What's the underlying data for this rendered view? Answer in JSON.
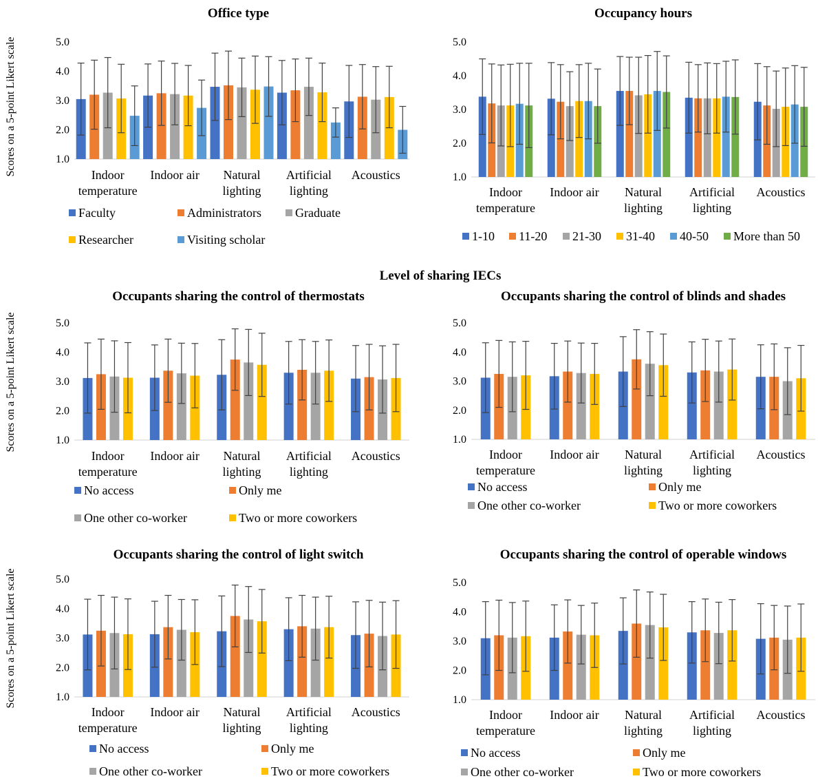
{
  "section_title": "Level of sharing IECs",
  "colors": {
    "blue": "#4472C4",
    "orange": "#ED7D31",
    "gray": "#A5A5A5",
    "yellow": "#FFC000",
    "lightblue": "#5B9BD5",
    "green": "#70AD47",
    "errorbar": "#404040"
  },
  "chart_data": [
    {
      "type": "bar",
      "title": "Office type",
      "ylabel": "Scores on a 5-point Likert scale",
      "ylim": [
        1.0,
        5.0
      ],
      "yticks": [
        "1.0",
        "2.0",
        "3.0",
        "4.0",
        "5.0"
      ],
      "categories": [
        "Indoor temperature",
        "Indoor air",
        "Natural lighting",
        "Artificial lighting",
        "Acoustics"
      ],
      "series": [
        {
          "name": "Faculty",
          "color": "#4472C4",
          "values": [
            3.05,
            3.17,
            3.47,
            3.27,
            2.97
          ],
          "errors": [
            1.23,
            1.08,
            1.15,
            1.1,
            1.23
          ]
        },
        {
          "name": "Administrators",
          "color": "#ED7D31",
          "values": [
            3.2,
            3.25,
            3.52,
            3.35,
            3.13
          ],
          "errors": [
            1.18,
            1.1,
            1.17,
            1.07,
            1.1
          ]
        },
        {
          "name": "Graduate",
          "color": "#A5A5A5",
          "values": [
            3.27,
            3.22,
            3.45,
            3.47,
            3.03
          ],
          "errors": [
            1.2,
            1.05,
            1.0,
            0.98,
            1.13
          ]
        },
        {
          "name": "Researcher",
          "color": "#FFC000",
          "values": [
            3.07,
            3.17,
            3.37,
            3.28,
            3.12
          ],
          "errors": [
            1.17,
            1.03,
            1.15,
            1.0,
            1.05
          ]
        },
        {
          "name": "Visiting scholar",
          "color": "#5B9BD5",
          "values": [
            2.48,
            2.75,
            3.48,
            2.25,
            2.0
          ],
          "errors": [
            1.02,
            0.95,
            1.02,
            0.5,
            0.8
          ]
        }
      ],
      "legend_rows": [
        [
          "Faculty",
          "Administrators",
          "Graduate"
        ],
        [
          "Researcher",
          "Visiting scholar"
        ]
      ]
    },
    {
      "type": "bar",
      "title": "Occupancy hours",
      "ylabel": "",
      "ylim": [
        1.0,
        5.0
      ],
      "yticks": [
        "1.0",
        "2.0",
        "3.0",
        "4.0",
        "5.0"
      ],
      "categories": [
        "Indoor temperature",
        "Indoor air",
        "Natural lighting",
        "Artificial lighting",
        "Acoustics"
      ],
      "series": [
        {
          "name": "1-10",
          "color": "#4472C4",
          "values": [
            3.38,
            3.32,
            3.55,
            3.35,
            3.23
          ],
          "errors": [
            1.12,
            1.07,
            1.02,
            1.05,
            1.13
          ]
        },
        {
          "name": "11-20",
          "color": "#ED7D31",
          "values": [
            3.18,
            3.23,
            3.55,
            3.33,
            3.12
          ],
          "errors": [
            1.17,
            1.1,
            1.0,
            1.0,
            1.15
          ]
        },
        {
          "name": "21-30",
          "color": "#A5A5A5",
          "values": [
            3.12,
            3.1,
            3.42,
            3.33,
            3.02
          ],
          "errors": [
            1.2,
            1.02,
            1.13,
            1.05,
            1.12
          ]
        },
        {
          "name": "31-40",
          "color": "#FFC000",
          "values": [
            3.12,
            3.25,
            3.45,
            3.33,
            3.08
          ],
          "errors": [
            1.22,
            1.08,
            1.15,
            1.03,
            1.15
          ]
        },
        {
          "name": "40-50",
          "color": "#5B9BD5",
          "values": [
            3.17,
            3.25,
            3.55,
            3.38,
            3.15
          ],
          "errors": [
            1.2,
            1.12,
            1.17,
            1.05,
            1.15
          ]
        },
        {
          "name": "More than 50",
          "color": "#70AD47",
          "values": [
            3.12,
            3.1,
            3.52,
            3.37,
            3.08
          ],
          "errors": [
            1.25,
            1.1,
            1.07,
            1.1,
            1.17
          ]
        }
      ],
      "legend_rows": [
        [
          "1-10",
          "11-20",
          "21-30",
          "31-40",
          "40-50",
          "More than 50"
        ]
      ]
    },
    {
      "type": "bar",
      "title": "Occupants sharing the control of thermostats",
      "ylabel": "Scores on a 5-point Likert scale",
      "ylim": [
        1.0,
        5.0
      ],
      "yticks": [
        "1.0",
        "2.0",
        "3.0",
        "4.0",
        "5.0"
      ],
      "categories": [
        "Indoor temperature",
        "Indoor air",
        "Natural lighting",
        "Artificial lighting",
        "Acoustics"
      ],
      "series": [
        {
          "name": "No access",
          "color": "#4472C4",
          "values": [
            3.12,
            3.13,
            3.23,
            3.3,
            3.1
          ],
          "errors": [
            1.2,
            1.12,
            1.2,
            1.07,
            1.13
          ]
        },
        {
          "name": "Only me",
          "color": "#ED7D31",
          "values": [
            3.25,
            3.37,
            3.75,
            3.4,
            3.15
          ],
          "errors": [
            1.2,
            1.08,
            1.05,
            1.03,
            1.12
          ]
        },
        {
          "name": "One other co-worker",
          "color": "#A5A5A5",
          "values": [
            3.17,
            3.28,
            3.65,
            3.3,
            3.07
          ],
          "errors": [
            1.22,
            1.03,
            1.13,
            1.07,
            1.15
          ]
        },
        {
          "name": "Two or more coworkers",
          "color": "#FFC000",
          "values": [
            3.13,
            3.2,
            3.57,
            3.37,
            3.12
          ],
          "errors": [
            1.2,
            1.1,
            1.08,
            1.05,
            1.15
          ]
        }
      ],
      "legend_rows": [
        [
          "No access",
          "Only me"
        ],
        [
          "One other co-worker",
          "Two or more coworkers"
        ]
      ]
    },
    {
      "type": "bar",
      "title": "Occupants sharing the control of blinds and shades",
      "ylabel": "",
      "ylim": [
        1.0,
        5.0
      ],
      "yticks": [
        "1.0",
        "2.0",
        "3.0",
        "4.0",
        "5.0"
      ],
      "categories": [
        "Indoor temperature",
        "Indoor air",
        "Natural lighting",
        "Artificial lighting",
        "Acoustics"
      ],
      "series": [
        {
          "name": "No access",
          "color": "#4472C4",
          "values": [
            3.12,
            3.17,
            3.33,
            3.3,
            3.15
          ],
          "errors": [
            1.2,
            1.13,
            1.2,
            1.05,
            1.1
          ]
        },
        {
          "name": "Only me",
          "color": "#ED7D31",
          "values": [
            3.25,
            3.33,
            3.75,
            3.37,
            3.15
          ],
          "errors": [
            1.15,
            1.05,
            1.02,
            1.07,
            1.13
          ]
        },
        {
          "name": "One other co-worker",
          "color": "#A5A5A5",
          "values": [
            3.15,
            3.28,
            3.6,
            3.33,
            3.0
          ],
          "errors": [
            1.2,
            1.03,
            1.1,
            1.05,
            1.15
          ]
        },
        {
          "name": "Two or more coworkers",
          "color": "#FFC000",
          "values": [
            3.2,
            3.25,
            3.55,
            3.4,
            3.1
          ],
          "errors": [
            1.17,
            1.05,
            1.07,
            1.05,
            1.13
          ]
        }
      ],
      "legend_rows": [
        [
          "No access",
          "Only me"
        ],
        [
          "One other co-worker",
          "Two or more coworkers"
        ]
      ]
    },
    {
      "type": "bar",
      "title": "Occupants sharing the control of light switch",
      "ylabel": "Scores on a 5-point Likert scale",
      "ylim": [
        1.0,
        5.0
      ],
      "yticks": [
        "1.0",
        "2.0",
        "3.0",
        "4.0",
        "5.0"
      ],
      "categories": [
        "Indoor temperature",
        "Indoor air",
        "Natural lighting",
        "Artificial lighting",
        "Acoustics"
      ],
      "series": [
        {
          "name": "No access",
          "color": "#4472C4",
          "values": [
            3.12,
            3.13,
            3.23,
            3.3,
            3.1
          ],
          "errors": [
            1.2,
            1.12,
            1.2,
            1.07,
            1.13
          ]
        },
        {
          "name": "Only me",
          "color": "#ED7D31",
          "values": [
            3.25,
            3.37,
            3.75,
            3.4,
            3.15
          ],
          "errors": [
            1.2,
            1.08,
            1.05,
            1.05,
            1.13
          ]
        },
        {
          "name": "One other co-worker",
          "color": "#A5A5A5",
          "values": [
            3.17,
            3.28,
            3.63,
            3.32,
            3.07
          ],
          "errors": [
            1.22,
            1.03,
            1.12,
            1.07,
            1.15
          ]
        },
        {
          "name": "Two or more coworkers",
          "color": "#FFC000",
          "values": [
            3.13,
            3.2,
            3.57,
            3.37,
            3.12
          ],
          "errors": [
            1.2,
            1.1,
            1.08,
            1.05,
            1.15
          ]
        }
      ],
      "legend_rows": [
        [
          "No access",
          "Only me"
        ],
        [
          "One other co-worker",
          "Two or more coworkers"
        ]
      ]
    },
    {
      "type": "bar",
      "title": "Occupants sharing the control of operable windows",
      "ylabel": "",
      "ylim": [
        1.0,
        5.0
      ],
      "yticks": [
        "1.0",
        "2.0",
        "3.0",
        "4.0",
        "5.0"
      ],
      "categories": [
        "Indoor temperature",
        "Indoor air",
        "Natural lighting",
        "Artificial lighting",
        "Acoustics"
      ],
      "series": [
        {
          "name": "No access",
          "color": "#4472C4",
          "values": [
            3.1,
            3.12,
            3.35,
            3.3,
            3.08
          ],
          "errors": [
            1.25,
            1.12,
            1.13,
            1.05,
            1.2
          ]
        },
        {
          "name": "Only me",
          "color": "#ED7D31",
          "values": [
            3.2,
            3.33,
            3.6,
            3.37,
            3.12
          ],
          "errors": [
            1.2,
            1.08,
            1.15,
            1.07,
            1.1
          ]
        },
        {
          "name": "One other co-worker",
          "color": "#A5A5A5",
          "values": [
            3.12,
            3.22,
            3.55,
            3.28,
            3.05
          ],
          "errors": [
            1.2,
            1.0,
            1.13,
            1.05,
            1.15
          ]
        },
        {
          "name": "Two or more coworkers",
          "color": "#FFC000",
          "values": [
            3.17,
            3.2,
            3.47,
            3.37,
            3.12
          ],
          "errors": [
            1.2,
            1.1,
            1.13,
            1.05,
            1.15
          ]
        }
      ],
      "legend_rows": [
        [
          "No access",
          "Only me"
        ],
        [
          "One other co-worker",
          "Two or more coworkers"
        ]
      ]
    }
  ]
}
